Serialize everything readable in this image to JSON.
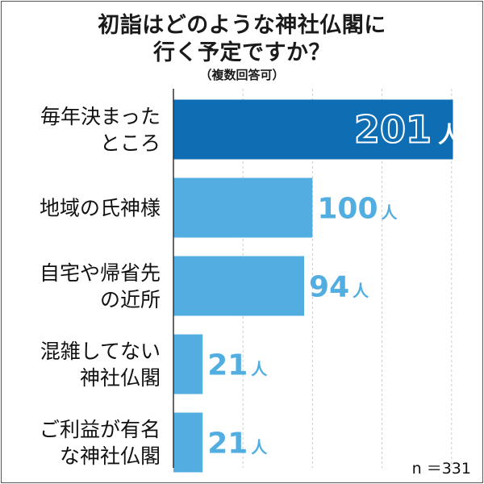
{
  "title_line1": "初詣はどのような神社仏閣に",
  "title_line2": "行く予定ですか？",
  "subtitle": "（複数回答可）",
  "sample_size": "n ＝331",
  "colors": {
    "highlight_bar": "#0e6db3",
    "bar": "#52aee0",
    "value_text": "#52aee0",
    "highlight_value_text": "#ffffff",
    "axis": "#333333",
    "grid": "#cccccc"
  },
  "chart_data": {
    "type": "bar",
    "orientation": "horizontal",
    "categories": [
      [
        "毎年決まった",
        "ところ"
      ],
      [
        "地域の氏神様"
      ],
      [
        "自宅や帰省先",
        "の近所"
      ],
      [
        "混雑してない",
        "神社仏閣"
      ],
      [
        "ご利益が有名",
        "な神社仏閣"
      ]
    ],
    "values": [
      201,
      100,
      94,
      21,
      21
    ],
    "value_labels": [
      "201",
      "100",
      "94",
      "21",
      "21"
    ],
    "unit": "人",
    "xlim": [
      0,
      210
    ],
    "grid": true,
    "highlight_index": 0
  }
}
